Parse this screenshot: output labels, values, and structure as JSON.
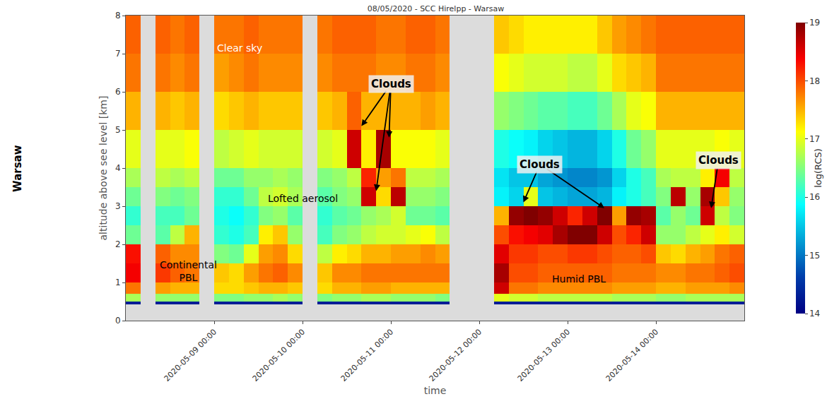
{
  "chart_data": {
    "type": "heatmap",
    "title": "08/05/2020 - SCC Hirelpp - Warsaw",
    "side_label": "Warsaw",
    "x_label": "time",
    "y_label": "altitude above see level [km]",
    "colorbar_title": "log(RCS)",
    "xlim": [
      "2020-05-08 00:00",
      "2020-05-15 00:00"
    ],
    "xticks": [
      "2020-05-09 00:00",
      "2020-05-10 00:00",
      "2020-05-11 00:00",
      "2020-05-12 00:00",
      "2020-05-13 00:00",
      "2020-05-14 00:00"
    ],
    "ylim": [
      0,
      8
    ],
    "yticks": [
      0,
      1,
      2,
      3,
      4,
      5,
      6,
      7,
      8
    ],
    "zlim": [
      14,
      19
    ],
    "zticks": [
      14,
      15,
      16,
      17,
      18,
      19
    ],
    "x": [
      "2020-05-08 00:00",
      "2020-05-08 04:00",
      "2020-05-08 08:00",
      "2020-05-08 12:00",
      "2020-05-08 16:00",
      "2020-05-08 20:00",
      "2020-05-09 00:00",
      "2020-05-09 04:00",
      "2020-05-09 08:00",
      "2020-05-09 12:00",
      "2020-05-09 16:00",
      "2020-05-09 20:00",
      "2020-05-10 00:00",
      "2020-05-10 04:00",
      "2020-05-10 08:00",
      "2020-05-10 12:00",
      "2020-05-10 16:00",
      "2020-05-10 20:00",
      "2020-05-11 00:00",
      "2020-05-11 04:00",
      "2020-05-11 08:00",
      "2020-05-11 12:00",
      "2020-05-11 16:00",
      "2020-05-11 20:00",
      "2020-05-12 00:00",
      "2020-05-12 04:00",
      "2020-05-12 08:00",
      "2020-05-12 12:00",
      "2020-05-12 16:00",
      "2020-05-12 20:00",
      "2020-05-13 00:00",
      "2020-05-13 04:00",
      "2020-05-13 08:00",
      "2020-05-13 12:00",
      "2020-05-13 16:00",
      "2020-05-13 20:00",
      "2020-05-14 00:00",
      "2020-05-14 04:00",
      "2020-05-14 08:00",
      "2020-05-14 12:00",
      "2020-05-14 16:00",
      "2020-05-14 20:00",
      "2020-05-15 00:00"
    ],
    "y": [
      0.42,
      0.5,
      0.7,
      1.0,
      1.5,
      2.0,
      2.5,
      3.0,
      3.5,
      4.0,
      5.0,
      6.0,
      7.0,
      8.0
    ],
    "z": [
      [
        14.3,
        16.7,
        17.8,
        18.4,
        18.3,
        16.4,
        16.1,
        16.4,
        16.7,
        17.0,
        17.5,
        17.8,
        17.9
      ],
      null,
      [
        14.3,
        16.6,
        17.6,
        18.1,
        17.9,
        16.3,
        16.2,
        16.5,
        16.8,
        17.0,
        17.5,
        17.8,
        17.9
      ],
      [
        14.3,
        16.6,
        17.5,
        17.9,
        17.7,
        16.8,
        16.2,
        16.4,
        16.7,
        17.0,
        17.4,
        17.7,
        17.8
      ],
      [
        14.3,
        16.6,
        17.5,
        17.8,
        17.7,
        17.5,
        16.4,
        16.5,
        16.8,
        17.1,
        17.5,
        17.8,
        17.9
      ],
      null,
      [
        14.3,
        16.5,
        17.3,
        17.4,
        16.5,
        16.1,
        16.0,
        16.1,
        16.4,
        16.8,
        17.3,
        17.6,
        17.8
      ],
      [
        14.3,
        16.5,
        17.3,
        17.3,
        16.4,
        16.0,
        15.9,
        16.1,
        16.4,
        16.9,
        17.4,
        17.7,
        17.8
      ],
      [
        14.3,
        16.6,
        17.4,
        17.6,
        17.0,
        16.2,
        16.1,
        16.4,
        16.6,
        17.0,
        17.5,
        17.8,
        17.9
      ],
      [
        14.3,
        16.6,
        17.5,
        17.8,
        17.6,
        17.2,
        16.5,
        16.8,
        16.6,
        16.9,
        17.4,
        17.7,
        17.8
      ],
      [
        14.3,
        16.7,
        17.5,
        17.9,
        17.7,
        17.4,
        16.6,
        16.9,
        16.7,
        16.9,
        17.4,
        17.7,
        17.8
      ],
      [
        14.3,
        16.6,
        17.4,
        17.7,
        17.3,
        16.6,
        16.3,
        16.7,
        16.6,
        16.9,
        17.4,
        17.7,
        17.8
      ],
      null,
      [
        14.3,
        16.5,
        17.3,
        17.4,
        16.8,
        16.2,
        16.1,
        16.3,
        16.5,
        16.9,
        17.4,
        17.7,
        17.8
      ],
      [
        14.3,
        16.6,
        17.5,
        17.7,
        17.2,
        16.5,
        16.3,
        16.5,
        16.6,
        17.0,
        17.5,
        17.8,
        17.9
      ],
      [
        14.3,
        16.6,
        17.5,
        17.7,
        17.3,
        16.6,
        16.4,
        16.6,
        16.8,
        18.6,
        17.9,
        17.8,
        17.9
      ],
      [
        14.3,
        16.7,
        17.6,
        17.8,
        17.5,
        16.8,
        16.6,
        18.6,
        18.2,
        17.2,
        17.5,
        17.8,
        17.9
      ],
      [
        14.3,
        16.7,
        17.6,
        17.8,
        17.5,
        16.9,
        16.7,
        17.3,
        17.6,
        18.8,
        17.5,
        17.7,
        17.8
      ],
      [
        14.3,
        16.6,
        17.5,
        17.8,
        17.6,
        16.9,
        16.9,
        18.7,
        17.8,
        17.1,
        17.5,
        17.7,
        17.8
      ],
      [
        14.3,
        16.6,
        17.5,
        17.8,
        17.6,
        17.0,
        16.4,
        16.6,
        16.8,
        17.1,
        17.5,
        17.8,
        17.9
      ],
      [
        14.3,
        16.6,
        17.5,
        17.8,
        17.7,
        17.1,
        16.4,
        16.6,
        16.8,
        17.1,
        17.6,
        17.8,
        17.9
      ],
      [
        14.3,
        16.5,
        17.5,
        17.8,
        17.6,
        16.8,
        16.3,
        16.5,
        16.7,
        17.0,
        17.5,
        17.7,
        17.8
      ],
      null,
      null,
      null,
      [
        14.3,
        17.0,
        18.6,
        18.8,
        18.5,
        18.0,
        17.5,
        15.8,
        15.7,
        16.0,
        16.6,
        17.1,
        17.4
      ],
      [
        14.3,
        16.9,
        17.8,
        18.0,
        18.1,
        18.3,
        18.9,
        15.6,
        15.5,
        15.9,
        16.5,
        17.0,
        17.3
      ],
      [
        14.3,
        16.9,
        17.8,
        18.0,
        18.1,
        18.4,
        19.0,
        17.0,
        15.5,
        15.8,
        16.4,
        16.9,
        17.2
      ],
      [
        14.3,
        16.8,
        17.7,
        17.9,
        18.0,
        18.5,
        18.9,
        15.5,
        15.3,
        15.6,
        16.3,
        16.9,
        17.2
      ],
      [
        14.3,
        16.8,
        17.7,
        17.9,
        18.0,
        18.8,
        18.6,
        15.4,
        15.2,
        15.5,
        16.3,
        16.9,
        17.2
      ],
      [
        14.3,
        16.8,
        17.7,
        17.9,
        18.1,
        19.0,
        18.2,
        15.3,
        15.1,
        15.4,
        16.2,
        16.8,
        17.2
      ],
      [
        14.3,
        16.8,
        17.7,
        17.9,
        18.1,
        19.0,
        18.6,
        15.3,
        15.1,
        15.4,
        16.2,
        16.8,
        17.2
      ],
      [
        14.3,
        16.8,
        17.7,
        17.9,
        18.0,
        18.6,
        19.0,
        15.4,
        15.2,
        15.6,
        16.4,
        17.0,
        17.4
      ],
      [
        14.3,
        16.7,
        17.6,
        17.8,
        17.9,
        18.0,
        17.6,
        15.8,
        15.6,
        16.0,
        16.7,
        17.3,
        17.6
      ],
      [
        14.3,
        16.7,
        17.6,
        17.8,
        17.9,
        18.2,
        18.9,
        16.0,
        16.0,
        16.4,
        17.0,
        17.4,
        17.7
      ],
      [
        14.3,
        16.7,
        17.6,
        17.8,
        18.0,
        18.6,
        18.8,
        16.2,
        16.2,
        16.6,
        17.1,
        17.5,
        17.8
      ],
      [
        14.3,
        16.6,
        17.5,
        17.7,
        17.4,
        16.6,
        16.3,
        16.5,
        16.7,
        17.0,
        17.5,
        17.8,
        17.9
      ],
      [
        14.3,
        16.6,
        17.5,
        17.7,
        17.3,
        16.6,
        16.6,
        18.7,
        16.8,
        17.0,
        17.5,
        17.8,
        17.9
      ],
      [
        14.3,
        16.7,
        17.6,
        17.8,
        17.5,
        16.8,
        16.4,
        16.6,
        16.8,
        17.0,
        17.5,
        17.8,
        17.9
      ],
      [
        14.3,
        16.7,
        17.6,
        17.8,
        17.6,
        17.0,
        18.6,
        18.8,
        17.2,
        17.0,
        17.5,
        17.8,
        17.9
      ],
      [
        14.3,
        16.7,
        17.6,
        17.9,
        17.8,
        17.2,
        16.8,
        17.4,
        18.4,
        17.1,
        17.5,
        17.8,
        17.9
      ],
      [
        14.3,
        16.7,
        17.7,
        18.0,
        17.9,
        16.9,
        16.5,
        16.6,
        16.8,
        17.0,
        17.5,
        17.8,
        17.9
      ]
    ],
    "annotations": [
      {
        "text": "Clear sky",
        "x": "2020-05-09 07:00",
        "y": 7.15,
        "color": "white"
      },
      {
        "text": "Lofted aerosol",
        "x": "2020-05-10 00:00",
        "y": 3.2,
        "color": "black"
      },
      {
        "text": "Continental\nPBL",
        "x": "2020-05-08 17:00",
        "y": 1.3,
        "color": "black"
      },
      {
        "text": "Humid PBL",
        "x": "2020-05-13 03:00",
        "y": 1.1,
        "color": "black"
      },
      {
        "text": "Clouds",
        "x": "2020-05-11 00:00",
        "y": 6.2,
        "color": "black",
        "arrows": [
          {
            "x": "2020-05-10 16:00",
            "y": 5.1
          },
          {
            "x": "2020-05-10 23:30",
            "y": 4.8
          },
          {
            "x": "2020-05-10 20:00",
            "y": 3.4
          }
        ]
      },
      {
        "text": "Clouds",
        "x": "2020-05-12 16:30",
        "y": 4.1,
        "color": "black",
        "arrows": [
          {
            "x": "2020-05-12 12:00",
            "y": 3.1
          },
          {
            "x": "2020-05-13 10:00",
            "y": 2.95
          }
        ]
      },
      {
        "text": "Clouds",
        "x": "2020-05-14 17:00",
        "y": 4.2,
        "color": "black",
        "arrows": [
          {
            "x": "2020-05-14 15:00",
            "y": 2.95
          }
        ]
      }
    ]
  }
}
